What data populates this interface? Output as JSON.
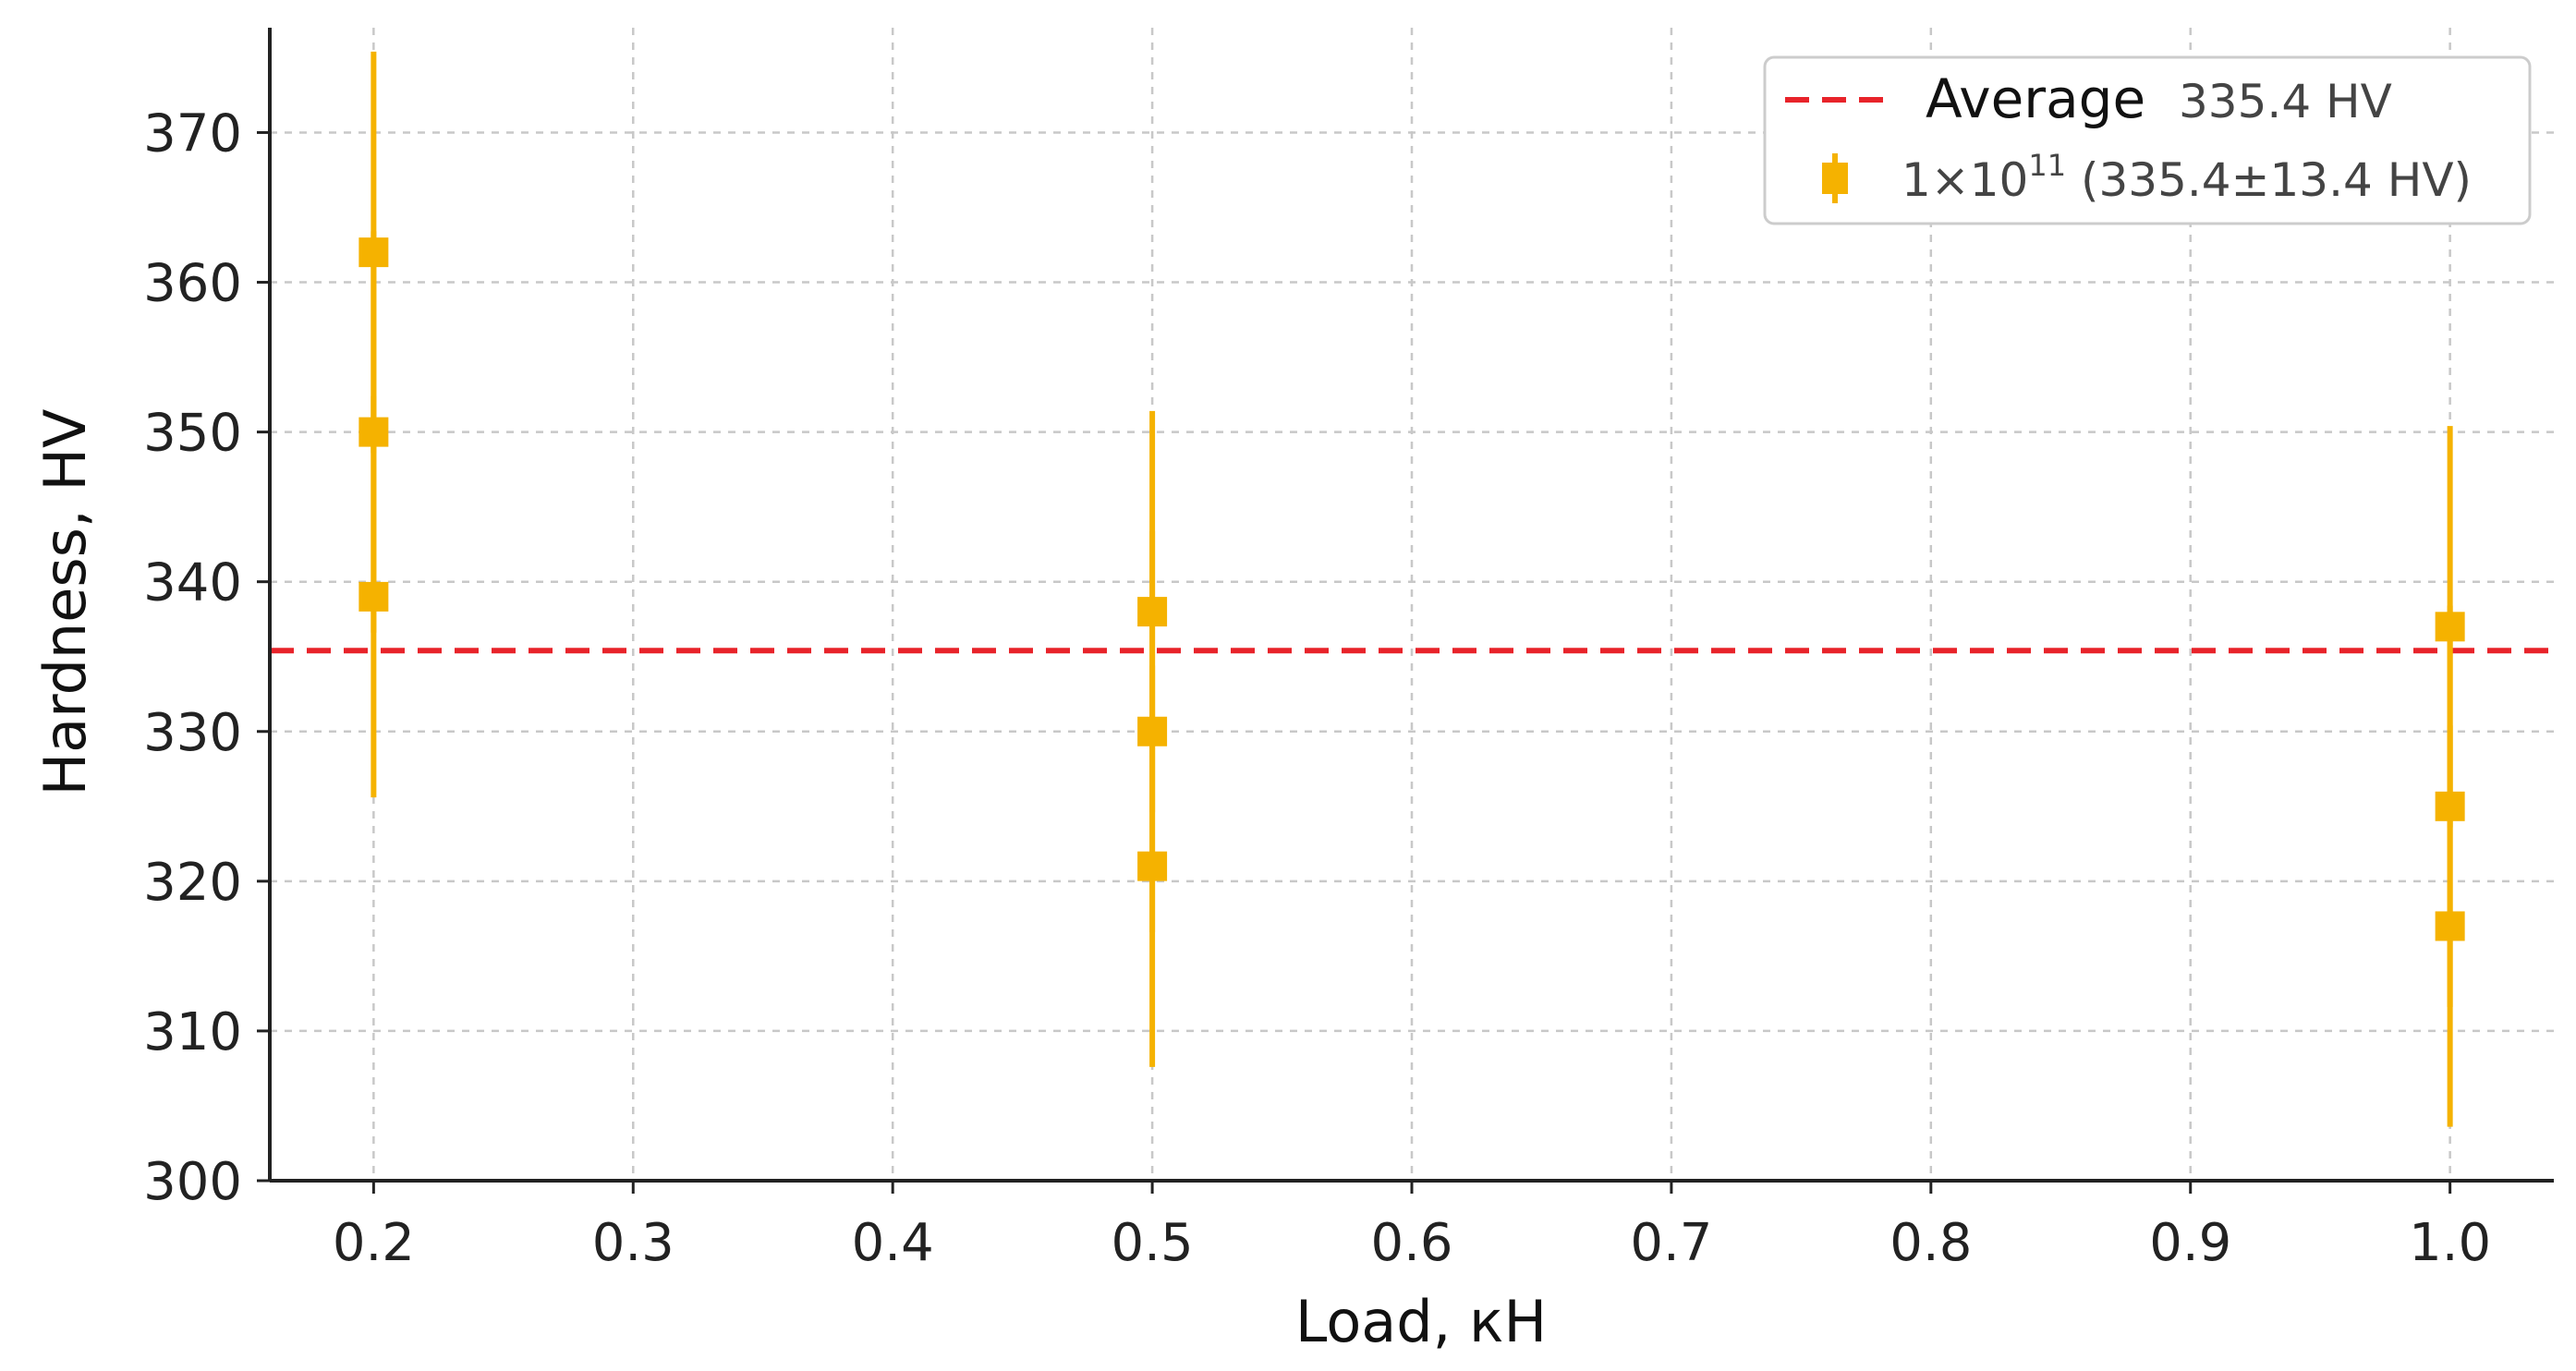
{
  "chart_data": {
    "type": "scatter",
    "title": "",
    "xlabel": "Load, кН",
    "ylabel": "Hardness, HV",
    "xlim": [
      0.16,
      1.04
    ],
    "ylim": [
      300,
      377
    ],
    "x_ticks": [
      0.2,
      0.3,
      0.4,
      0.5,
      0.6,
      0.7,
      0.8,
      0.9,
      1.0
    ],
    "x_tick_labels": [
      "0.2",
      "0.3",
      "0.4",
      "0.5",
      "0.6",
      "0.7",
      "0.8",
      "0.9",
      "1.0"
    ],
    "y_ticks": [
      300,
      310,
      320,
      330,
      340,
      350,
      360,
      370
    ],
    "y_tick_labels": [
      "300",
      "310",
      "320",
      "330",
      "340",
      "350",
      "360",
      "370"
    ],
    "grid": true,
    "legend_position": "top-right",
    "reference_line": {
      "y": 335.4,
      "color": "#e8232a",
      "legend_label": "Average",
      "legend_value": "335.4 HV"
    },
    "series": [
      {
        "name": "1×10",
        "name_superscript": "11",
        "name_suffix": " (335.4±13.4 HV)",
        "color": "#f5b200",
        "error": 13.4,
        "points": [
          {
            "x": 0.2,
            "y": 362
          },
          {
            "x": 0.2,
            "y": 350
          },
          {
            "x": 0.2,
            "y": 339
          },
          {
            "x": 0.5,
            "y": 338
          },
          {
            "x": 0.5,
            "y": 330
          },
          {
            "x": 0.5,
            "y": 321
          },
          {
            "x": 1.0,
            "y": 337
          },
          {
            "x": 1.0,
            "y": 325
          },
          {
            "x": 1.0,
            "y": 317
          }
        ]
      }
    ]
  }
}
